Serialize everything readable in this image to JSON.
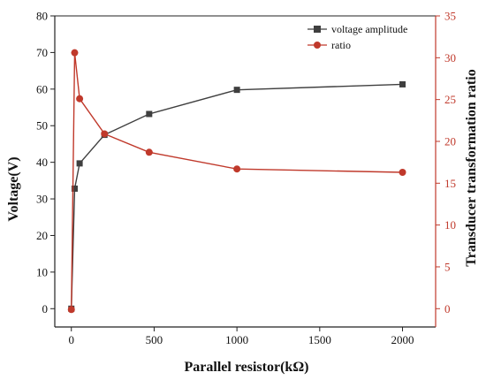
{
  "chart_data": {
    "type": "line",
    "xlabel": "Parallel resistor(kΩ)",
    "ylabel_left": "Voltage(V)",
    "ylabel_right": "Transducer transformation ratio",
    "xlim": [
      -100,
      2200
    ],
    "ylim_left": [
      -5,
      80
    ],
    "ylim_right": [
      -2.1875,
      35
    ],
    "x_ticks": [
      0,
      500,
      1000,
      1500,
      2000
    ],
    "y_ticks_left": [
      0,
      10,
      20,
      30,
      40,
      50,
      60,
      70,
      80
    ],
    "y_ticks_right": [
      0,
      5,
      10,
      15,
      20,
      25,
      30,
      35
    ],
    "legend_position": "top-right",
    "grid": false,
    "series": [
      {
        "name": "voltage amplitude",
        "axis": "left",
        "color": "#3f3f3f",
        "marker": "square",
        "x": [
          0,
          20,
          50,
          200,
          470,
          1000,
          2000
        ],
        "y": [
          0,
          32.8,
          39.7,
          47.5,
          53.2,
          59.8,
          61.3
        ]
      },
      {
        "name": "ratio",
        "axis": "right",
        "color": "#c0392b",
        "marker": "circle",
        "x": [
          0,
          20,
          50,
          200,
          470,
          1000,
          2000
        ],
        "y": [
          -0.1,
          30.6,
          25.1,
          20.9,
          18.7,
          16.7,
          16.3
        ]
      }
    ]
  }
}
